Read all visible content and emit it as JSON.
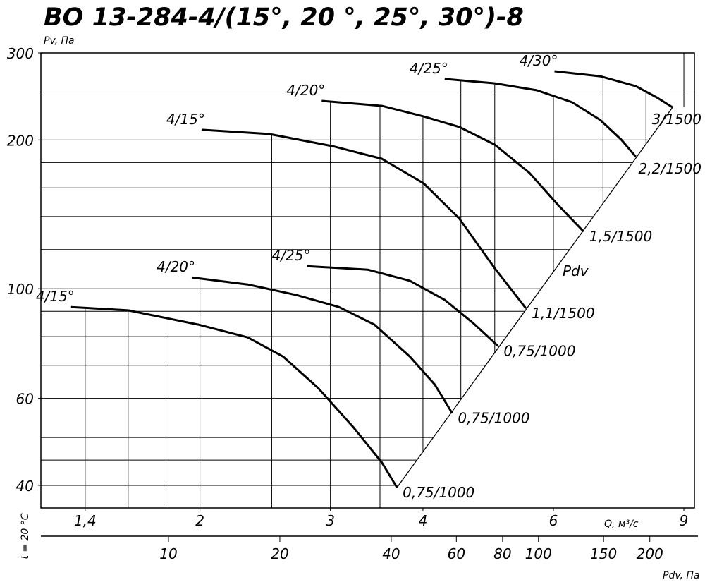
{
  "chart_data": {
    "type": "line",
    "title": "ВО 13-284-4/(15°, 20 °, 25°, 30°)-8",
    "y_label": "Pv, Па",
    "x_label": "Q, м³/с",
    "x2_label": "Pdv, Па",
    "note": "t = 20 °C",
    "log_x": true,
    "log_y": true,
    "xlim": [
      1.22,
      9.3
    ],
    "ylim": [
      36,
      300
    ],
    "x2lim": [
      4.52,
      264
    ],
    "xticks": [
      {
        "value": 1.4,
        "label": "1,4"
      },
      2,
      3,
      4,
      6,
      9
    ],
    "yticks": [
      40,
      60,
      100,
      200,
      300
    ],
    "x2ticks": [
      10,
      20,
      40,
      60,
      80,
      100,
      150,
      200
    ],
    "xgrid": [
      1.4,
      1.6,
      1.8,
      2,
      2.5,
      3,
      3.5,
      4,
      4.5,
      5,
      6,
      7,
      8,
      9
    ],
    "ygrid": [
      40,
      45,
      50,
      60,
      70,
      80,
      90,
      100,
      120,
      140,
      160,
      180,
      200,
      250,
      300
    ],
    "color": "#000000",
    "series": [
      {
        "name": "4/15°",
        "end_label": "0,75/1000",
        "x": [
          1.34,
          1.6,
          1.99,
          2.32,
          2.59,
          2.89,
          3.22,
          3.52,
          3.69
        ],
        "values": [
          91.8,
          90.4,
          84.6,
          79.7,
          72.9,
          62.9,
          52.5,
          44.5,
          39.6
        ]
      },
      {
        "name": "4/20°",
        "end_label": "0,75/1000",
        "x": [
          1.95,
          2.32,
          2.7,
          3.08,
          3.44,
          3.84,
          4.15,
          4.38
        ],
        "values": [
          105.4,
          102,
          97.1,
          91.8,
          84.6,
          72.9,
          64.0,
          56.0
        ]
      },
      {
        "name": "4/25°",
        "end_label": "0,75/1000",
        "x": [
          2.79,
          3.37,
          3.84,
          4.28,
          4.68,
          5.05
        ],
        "values": [
          111.1,
          109.3,
          103.8,
          94.9,
          85.1,
          76.6
        ]
      },
      {
        "name": "4/15°",
        "end_label": "1,1/1500",
        "x": [
          2.01,
          2.48,
          3.02,
          3.52,
          4.01,
          4.48,
          5.0,
          5.51
        ],
        "values": [
          209.7,
          205.6,
          194.3,
          183.2,
          163.3,
          138.5,
          110,
          91.2
        ]
      },
      {
        "name": "4/20°",
        "end_label": "1,5/1500",
        "x": [
          2.92,
          3.52,
          4.01,
          4.48,
          5.0,
          5.57,
          6.08,
          6.59
        ],
        "values": [
          239.9,
          234.4,
          223.1,
          212.4,
          195.7,
          171.5,
          148,
          130.5
        ]
      },
      {
        "name": "4/25°",
        "end_label": "2,2/1500",
        "x": [
          4.28,
          5.0,
          5.7,
          6.36,
          6.94,
          7.41,
          7.75
        ],
        "values": [
          265.7,
          260.4,
          252,
          238.3,
          219.5,
          200.2,
          185
        ]
      },
      {
        "name": "4/30°",
        "end_label": "3/1500",
        "x": [
          6.02,
          6.94,
          7.75,
          8.27,
          8.69
        ],
        "values": [
          275.4,
          269.1,
          257.0,
          243.9,
          232.8
        ]
      }
    ],
    "reference_line": {
      "name": "Pdv",
      "x": [
        3.69,
        8.69
      ],
      "values": [
        39.6,
        232.8
      ]
    }
  }
}
